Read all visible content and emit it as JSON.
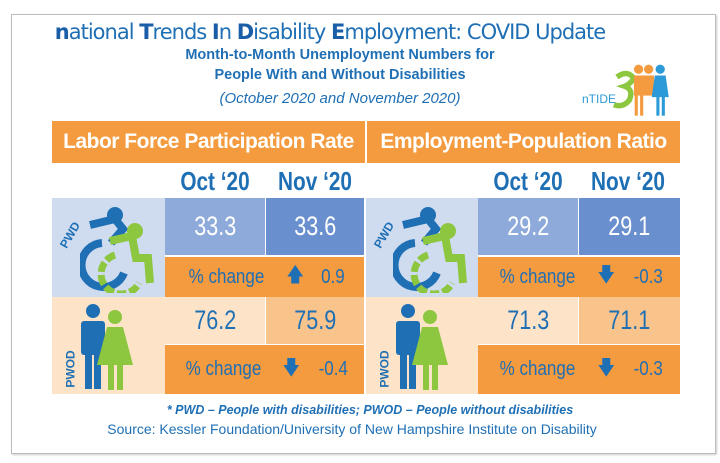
{
  "title": {
    "n": "n",
    "ational": "ational ",
    "T": "T",
    "rends": "rends ",
    "I": "I",
    "n2": "n ",
    "D": "D",
    "isability": "isability ",
    "E": "E",
    "mployment": "mployment: COVID Update"
  },
  "subtitle_line1": "Month-to-Month Unemployment Numbers for",
  "subtitle_line2": "People With and Without Disabilities",
  "period": "(October 2020  and  November 2020)",
  "logo_text": "nTIDE",
  "colors": {
    "orange": "#f49b3f",
    "blue_text": "#1f6fb5",
    "green": "#8dc63f"
  },
  "panels": [
    {
      "header": "Labor Force Participation Rate",
      "months": [
        "Oct ‘20",
        "Nov ‘20"
      ],
      "pwd": {
        "label": "PWD",
        "oct": "33.3",
        "nov": "33.6",
        "change_label": "% change",
        "direction": "up",
        "change": "0.9"
      },
      "pwod": {
        "label": "PWOD",
        "oct": "76.2",
        "nov": "75.9",
        "change_label": "% change",
        "direction": "down",
        "change": "-0.4"
      }
    },
    {
      "header": "Employment-Population Ratio",
      "months": [
        "Oct ‘20",
        "Nov ‘20"
      ],
      "pwd": {
        "label": "PWD",
        "oct": "29.2",
        "nov": "29.1",
        "change_label": "% change",
        "direction": "down",
        "change": "-0.3"
      },
      "pwod": {
        "label": "PWOD",
        "oct": "71.3",
        "nov": "71.1",
        "change_label": "% change",
        "direction": "down",
        "change": "-0.3"
      }
    }
  ],
  "footnote": "* PWD – People with disabilities;   PWOD – People without disabilities",
  "source": "Source: Kessler Foundation/University of New Hampshire Institute on Disability"
}
